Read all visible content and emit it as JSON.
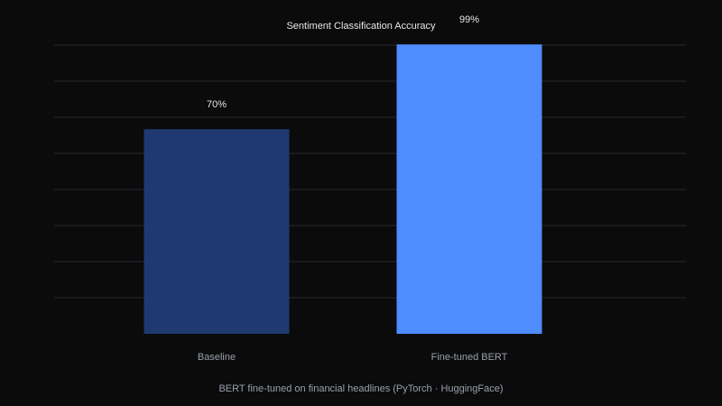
{
  "colors": {
    "background": "#0b0b0c",
    "gridline": "#2a2a2d",
    "title": "#e6e6e6",
    "value_label": "#e6e6e6",
    "category_label": "#9aa0aa",
    "caption": "#9aa0aa"
  },
  "chart_data": {
    "type": "bar",
    "title": "Sentiment Classification Accuracy",
    "categories": [
      "Baseline",
      "Fine-tuned BERT"
    ],
    "values": [
      70,
      99
    ],
    "value_labels": [
      "70%",
      "99%"
    ],
    "bar_colors": [
      "#1e3a70",
      "#4f8cff"
    ],
    "ylim": [
      0,
      100
    ],
    "grid": true,
    "xlabel": "",
    "ylabel": "",
    "caption": "BERT fine-tuned on financial headlines (PyTorch · HuggingFace)"
  }
}
